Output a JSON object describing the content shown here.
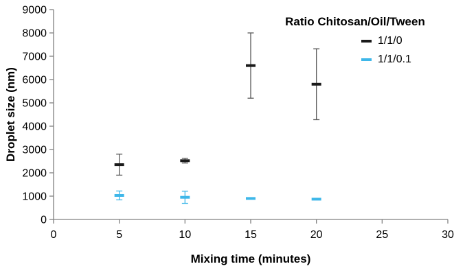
{
  "chart_data": {
    "type": "scatter",
    "title": "",
    "xlabel": "Mixing time (minutes)",
    "ylabel": "Droplet size (nm)",
    "xlim": [
      0,
      30
    ],
    "ylim": [
      0,
      9000
    ],
    "x_ticks": [
      0,
      5,
      10,
      15,
      20,
      25,
      30
    ],
    "y_ticks": [
      0,
      1000,
      2000,
      3000,
      4000,
      5000,
      6000,
      7000,
      8000,
      9000
    ],
    "grid": false,
    "legend_title": "Ratio Chitosan/Oil/Tween",
    "legend_position": "top-right-inside",
    "axis_color": "#808080",
    "series": [
      {
        "name": "1/1/0",
        "color": "#1a1a1a",
        "error_color": "#595959",
        "x": [
          5,
          10,
          15,
          20
        ],
        "y": [
          2350,
          2520,
          6600,
          5800
        ],
        "yerr": [
          450,
          100,
          1400,
          1520
        ]
      },
      {
        "name": "1/1/0.1",
        "color": "#3EB7E9",
        "error_color": "#3EB7E9",
        "x": [
          5,
          10,
          15,
          20
        ],
        "y": [
          1030,
          950,
          900,
          870
        ],
        "yerr": [
          190,
          260,
          0,
          0
        ]
      }
    ]
  }
}
